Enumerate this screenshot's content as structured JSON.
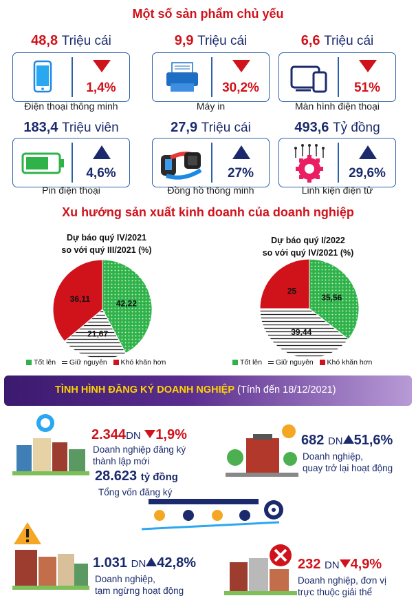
{
  "header": {
    "title": "Một số sản phẩm chủ yếu"
  },
  "products": [
    {
      "value": "48,8",
      "unit": "Triệu cái",
      "pct": "1,4%",
      "direction": "down",
      "label": "Điện thoại thông minh",
      "icon": "smartphone-icon"
    },
    {
      "value": "9,9",
      "unit": "Triệu cái",
      "pct": "30,2%",
      "direction": "down",
      "label": "Máy in",
      "icon": "printer-icon"
    },
    {
      "value": "6,6",
      "unit": "Triệu cái",
      "pct": "51%",
      "direction": "down",
      "label": "Màn hình điện thoại",
      "icon": "devices-icon"
    },
    {
      "value": "183,4",
      "unit": "Triệu viên",
      "pct": "4,6%",
      "direction": "up",
      "label": "Pin điện thoại",
      "icon": "battery-icon"
    },
    {
      "value": "27,9",
      "unit": "Triệu cái",
      "pct": "27%",
      "direction": "up",
      "label": "Đồng hồ thông minh",
      "icon": "smartwatch-icon"
    },
    {
      "value": "493,6",
      "unit": "Tỷ đồng",
      "pct": "29,6%",
      "direction": "up",
      "label": "Linh kiện điện tử",
      "icon": "circuit-gear-icon"
    }
  ],
  "trend": {
    "title": "Xu hướng sản xuất kinh doanh của doanh nghiệp"
  },
  "chart_data": [
    {
      "type": "pie",
      "title_line1": "Dự báo quý IV/2021",
      "title_line2": "so với quý III/2021 (%)",
      "slices": [
        {
          "name": "Tốt lên",
          "value": 42.22,
          "label": "42,22"
        },
        {
          "name": "Giữ nguyên",
          "value": 21.67,
          "label": "21,67"
        },
        {
          "name": "Khó khăn hơn",
          "value": 36.11,
          "label": "36,11"
        }
      ],
      "legend": [
        "Tốt lên",
        "Giữ nguyên",
        "Khó khăn hơn"
      ],
      "legend_placement": "bottom"
    },
    {
      "type": "pie",
      "title_line1": "Dự báo quý I/2022",
      "title_line2": "so với quý IV/2021 (%)",
      "slices": [
        {
          "name": "Tốt lên",
          "value": 35.56,
          "label": "35,56"
        },
        {
          "name": "Giữ nguyên",
          "value": 39.44,
          "label": "39,44"
        },
        {
          "name": "Khó khăn hơn",
          "value": 25,
          "label": "25"
        }
      ],
      "legend": [
        "Tốt lên",
        "Giữ nguyên",
        "Khó khăn hơn"
      ],
      "legend_placement": "bottom"
    }
  ],
  "colors": {
    "red": "#d0121b",
    "navy": "#1a2a6c",
    "green": "#2fb24a",
    "purple": "#5a2d8e"
  },
  "registration": {
    "banner_title": "TÌNH HÌNH ĐĂNG KÝ DOANH NGHIỆP",
    "banner_note": " (Tính đến 18/12/2021)",
    "new": {
      "value": "2.344",
      "unit": "DN",
      "pct": "1,9%",
      "direction": "down",
      "line1": "Doanh nghiệp đăng ký",
      "line2": "thành lập mới"
    },
    "capital": {
      "value": "28.623",
      "unit": "tỷ đồng",
      "label": "Tổng vốn đăng ký"
    },
    "returned": {
      "value": "682",
      "unit": "DN",
      "pct": "51,6%",
      "direction": "up",
      "line1": "Doanh nghiệp,",
      "line2": "quay trở  lại hoạt động"
    },
    "suspended": {
      "value": "1.031",
      "unit": "DN",
      "pct": "42,8%",
      "direction": "up",
      "line1": "Doanh nghiệp,",
      "line2": "tạm ngừng hoạt động"
    },
    "dissolved": {
      "value": "232",
      "unit": "DN",
      "pct": "4,9%",
      "direction": "down",
      "line1": "Doanh nghiệp, đơn vị",
      "line2": "trực thuộc giải thể"
    }
  }
}
